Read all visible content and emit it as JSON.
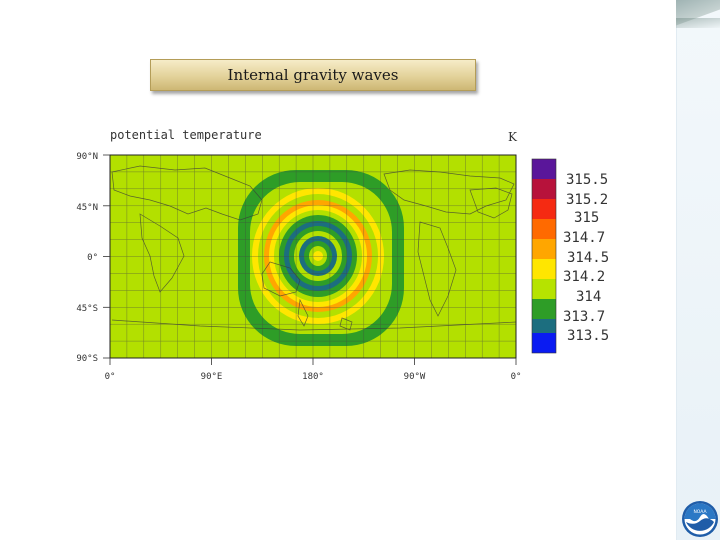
{
  "slide": {
    "title": "Internal gravity waves"
  },
  "plot": {
    "variable_label": "potential temperature",
    "unit_label": "K",
    "lat_ticks": [
      "90°N",
      "45°N",
      "0°",
      "45°S",
      "90°S"
    ],
    "lon_ticks": [
      "0°",
      "90°E",
      "180°",
      "90°W",
      "0°"
    ],
    "colorbar_labels": [
      "315.5",
      "315.2",
      "315",
      "314.7",
      "314.5",
      "314.2",
      "314",
      "313.7",
      "313.5"
    ],
    "colorbar_colors": [
      "#5a169a",
      "#b7123b",
      "#f52a12",
      "#ff6a00",
      "#ffa600",
      "#ffe600",
      "#b6e300",
      "#2e9d27",
      "#1c6e7f",
      "#0a1bf2"
    ]
  },
  "logo": {
    "text": "NOAA"
  }
}
